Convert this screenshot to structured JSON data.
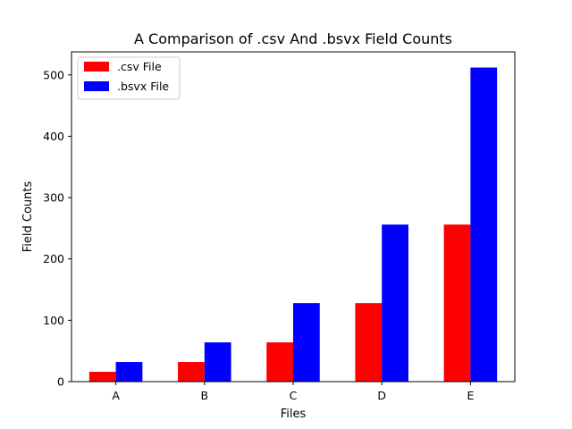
{
  "chart_data": {
    "type": "bar",
    "title": "A Comparison of .csv And .bsvx Field Counts",
    "xlabel": "Files",
    "ylabel": "Field Counts",
    "categories": [
      "A",
      "B",
      "C",
      "D",
      "E"
    ],
    "series": [
      {
        "name": ".csv File",
        "color": "#ff0000",
        "values": [
          16,
          32,
          64,
          128,
          256
        ]
      },
      {
        "name": ".bsvx File",
        "color": "#0000ff",
        "values": [
          32,
          64,
          128,
          256,
          512
        ]
      }
    ],
    "ylim": [
      0,
      537.6
    ],
    "yticks": [
      0,
      100,
      200,
      300,
      400,
      500
    ],
    "grid": false,
    "legend_position": "top-left"
  }
}
